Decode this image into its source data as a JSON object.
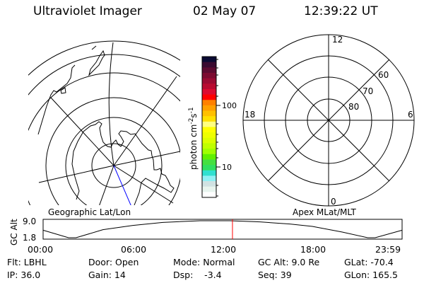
{
  "header": {
    "instrument": "Ultraviolet Imager",
    "date": "02 May 07",
    "time": "12:39:22 UT"
  },
  "colorbar": {
    "unit_base": "photon cm",
    "unit_exp1": "-2",
    "unit_s": "s",
    "unit_exp2": "-1",
    "tick_100": "100",
    "tick_10": "10",
    "colors": [
      "#0a0a32",
      "#3a0a30",
      "#5c0a30",
      "#7c0a30",
      "#9a0a32",
      "#b80a30",
      "#dc0a30",
      "#ff0000",
      "#ff8000",
      "#ffa000",
      "#ffc000",
      "#ffe000",
      "#ffff80",
      "#ffff00",
      "#eeff00",
      "#dcff00",
      "#c0ff00",
      "#a0ff00",
      "#60f000",
      "#44e040",
      "#30e060",
      "#30e0d0",
      "#90f0f4",
      "#d0e2e2",
      "#e8f4ee",
      "#ffffff"
    ]
  },
  "polar_plot": {
    "mlt_labels": {
      "top": "12",
      "bottom": "0",
      "left": "18",
      "right": "6"
    },
    "lat_labels": [
      "80",
      "70",
      "60"
    ]
  },
  "panel_labels": {
    "left": "Geographic Lat/Lon",
    "right": "Apex MLat/MLT"
  },
  "chart_data": {
    "type": "line",
    "title": "",
    "ylabel": "GC Alt",
    "xlabel": "",
    "x_tick_labels": [
      "00:00",
      "06:00",
      "12:00",
      "18:00",
      "23:59"
    ],
    "y_tick_labels": [
      "9.0",
      "1.8"
    ],
    "xlim": [
      0,
      24
    ],
    "ylim": [
      1.8,
      9.0
    ],
    "series": [
      {
        "name": "GC Alt",
        "x": [
          0,
          1.7,
          2.2,
          4,
          6,
          8,
          10.5,
          12.5,
          14.5,
          16.5,
          18,
          20,
          21.7,
          22.2,
          24
        ],
        "y": [
          5.0,
          1.8,
          1.8,
          5.2,
          7.0,
          8.3,
          9.0,
          9.0,
          8.5,
          7.6,
          6.6,
          4.2,
          1.8,
          1.8,
          5.0
        ]
      }
    ],
    "current_time_marker": 12.66
  },
  "info": {
    "flt": "Flt: LBHL",
    "ip": "IP: 36.0",
    "door": "Door: Open",
    "gain": "Gain: 14",
    "mode": "Mode: Normal",
    "dsp": "Dsp:    -3.4",
    "gcalt": "GC Alt: 9.0 Re",
    "seq": "Seq: 39",
    "glat": "GLat: -70.4",
    "glon": "GLon: 165.5"
  }
}
